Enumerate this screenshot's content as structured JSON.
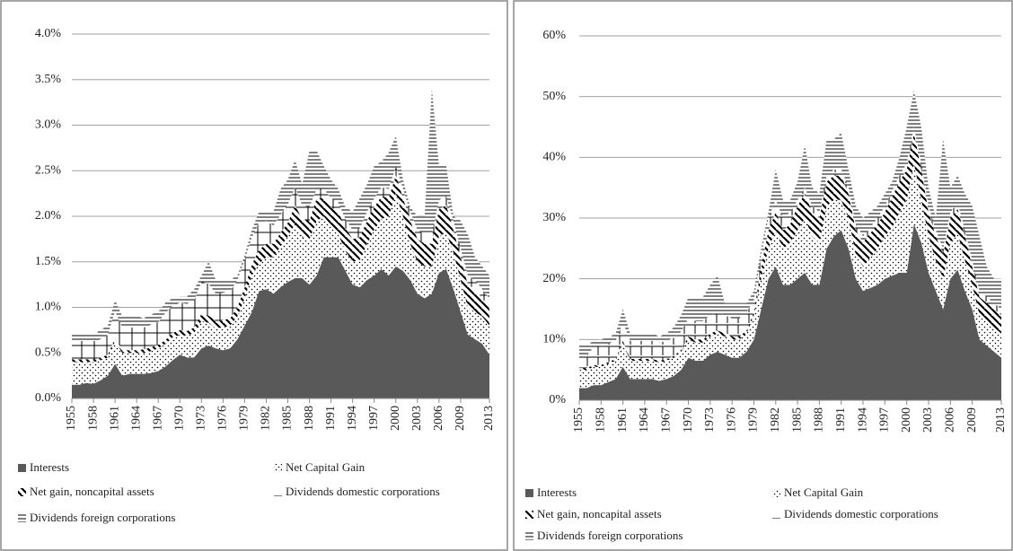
{
  "chart_data": [
    {
      "type": "area",
      "stacked": true,
      "x": [
        1955,
        1956,
        1957,
        1958,
        1959,
        1960,
        1961,
        1962,
        1963,
        1964,
        1965,
        1966,
        1967,
        1968,
        1969,
        1970,
        1971,
        1972,
        1973,
        1974,
        1975,
        1976,
        1977,
        1978,
        1979,
        1980,
        1981,
        1982,
        1983,
        1984,
        1985,
        1986,
        1987,
        1988,
        1989,
        1990,
        1991,
        1992,
        1993,
        1994,
        1995,
        1996,
        1997,
        1998,
        1999,
        2000,
        2001,
        2002,
        2003,
        2004,
        2005,
        2006,
        2007,
        2008,
        2009,
        2010,
        2011,
        2012,
        2013
      ],
      "xlim": [
        1955,
        2013
      ],
      "xticks": [
        1955,
        1958,
        1961,
        1964,
        1967,
        1970,
        1973,
        1976,
        1979,
        1982,
        1985,
        1988,
        1991,
        1994,
        1997,
        2000,
        2003,
        2006,
        2009,
        2013
      ],
      "ylim": [
        0,
        4
      ],
      "yticks": [
        {
          "value": 0,
          "label": "0.0%"
        },
        {
          "value": 0.5,
          "label": "0.5%"
        },
        {
          "value": 1,
          "label": "1.0%"
        },
        {
          "value": 1.5,
          "label": "1.5%"
        },
        {
          "value": 2,
          "label": "2.0%"
        },
        {
          "value": 2.5,
          "label": "2.5%"
        },
        {
          "value": 3,
          "label": "3.0%"
        },
        {
          "value": 3.5,
          "label": "3.5%"
        },
        {
          "value": 4,
          "label": "4.0%"
        }
      ],
      "grid": true,
      "series": [
        {
          "name": "Interests",
          "color": "#595959",
          "pattern": "solid",
          "values": [
            0.15,
            0.15,
            0.17,
            0.16,
            0.2,
            0.25,
            0.38,
            0.25,
            0.27,
            0.27,
            0.27,
            0.28,
            0.3,
            0.35,
            0.42,
            0.48,
            0.45,
            0.45,
            0.55,
            0.58,
            0.55,
            0.53,
            0.55,
            0.65,
            0.8,
            0.95,
            1.18,
            1.2,
            1.15,
            1.22,
            1.28,
            1.32,
            1.32,
            1.25,
            1.35,
            1.55,
            1.55,
            1.55,
            1.4,
            1.25,
            1.22,
            1.3,
            1.35,
            1.42,
            1.35,
            1.45,
            1.4,
            1.3,
            1.15,
            1.1,
            1.15,
            1.38,
            1.42,
            1.2,
            0.95,
            0.7,
            0.65,
            0.6,
            0.48
          ]
        },
        {
          "name": "Net Capital Gain",
          "color": "#000000",
          "pattern": "dots",
          "values": [
            0.25,
            0.25,
            0.23,
            0.24,
            0.22,
            0.2,
            0.25,
            0.25,
            0.23,
            0.23,
            0.23,
            0.24,
            0.25,
            0.25,
            0.25,
            0.22,
            0.24,
            0.27,
            0.3,
            0.25,
            0.22,
            0.25,
            0.25,
            0.25,
            0.3,
            0.4,
            0.3,
            0.35,
            0.4,
            0.45,
            0.5,
            0.6,
            0.45,
            0.5,
            0.6,
            0.45,
            0.35,
            0.25,
            0.22,
            0.25,
            0.3,
            0.4,
            0.5,
            0.55,
            0.65,
            0.8,
            0.6,
            0.4,
            0.35,
            0.35,
            0.3,
            0.4,
            0.4,
            0.4,
            0.35,
            0.3,
            0.3,
            0.3,
            0.32
          ]
        },
        {
          "name": "Net gain, noncapital assets",
          "color": "#000000",
          "pattern": "diagonal",
          "values": [
            0.03,
            0.03,
            0.03,
            0.03,
            0.03,
            0.03,
            0.03,
            0.03,
            0.03,
            0.03,
            0.04,
            0.04,
            0.04,
            0.04,
            0.05,
            0.05,
            0.05,
            0.06,
            0.08,
            0.08,
            0.08,
            0.08,
            0.08,
            0.1,
            0.12,
            0.12,
            0.15,
            0.15,
            0.15,
            0.15,
            0.15,
            0.2,
            0.2,
            0.2,
            0.25,
            0.2,
            0.2,
            0.25,
            0.25,
            0.25,
            0.25,
            0.25,
            0.25,
            0.25,
            0.2,
            0.2,
            0.2,
            0.25,
            0.25,
            0.25,
            0.25,
            0.3,
            0.3,
            0.25,
            0.25,
            0.25,
            0.25,
            0.2,
            0.2
          ]
        },
        {
          "name": "Dividends domestic corporations",
          "color": "#000000",
          "pattern": "cross",
          "values": [
            0.2,
            0.2,
            0.2,
            0.2,
            0.2,
            0.22,
            0.3,
            0.25,
            0.25,
            0.25,
            0.24,
            0.25,
            0.25,
            0.3,
            0.3,
            0.3,
            0.3,
            0.3,
            0.35,
            0.35,
            0.3,
            0.3,
            0.3,
            0.3,
            0.3,
            0.3,
            0.3,
            0.25,
            0.2,
            0.2,
            0.2,
            0.2,
            0.15,
            0.15,
            0.1,
            0.1,
            0.1,
            0.1,
            0.1,
            0.1,
            0.1,
            0.1,
            0.1,
            0.1,
            0.1,
            0.1,
            0.1,
            0.1,
            0.1,
            0.1,
            0.1,
            0.1,
            0.1,
            0.1,
            0.1,
            0.1,
            0.1,
            0.1,
            0.1
          ]
        },
        {
          "name": "Dividends foreign corporations",
          "color": "#000000",
          "pattern": "horizontal",
          "values": [
            0.09,
            0.09,
            0.07,
            0.07,
            0.1,
            0.1,
            0.12,
            0.12,
            0.12,
            0.12,
            0.1,
            0.11,
            0.11,
            0.11,
            0.08,
            0.07,
            0.08,
            0.12,
            0.07,
            0.24,
            0.15,
            0.14,
            0.12,
            0.05,
            0.05,
            0.08,
            0.12,
            0.1,
            0.15,
            0.28,
            0.27,
            0.3,
            0.23,
            0.62,
            0.42,
            0.25,
            0.2,
            0.15,
            0.13,
            0.2,
            0.33,
            0.3,
            0.35,
            0.28,
            0.4,
            0.33,
            0.1,
            0.05,
            0.15,
            0.2,
            1.6,
            0.37,
            0.33,
            0.05,
            0.3,
            0.45,
            0.25,
            0.25,
            0.25
          ]
        }
      ]
    },
    {
      "type": "area",
      "stacked": true,
      "x": [
        1955,
        1956,
        1957,
        1958,
        1959,
        1960,
        1961,
        1962,
        1963,
        1964,
        1965,
        1966,
        1967,
        1968,
        1969,
        1970,
        1971,
        1972,
        1973,
        1974,
        1975,
        1976,
        1977,
        1978,
        1979,
        1980,
        1981,
        1982,
        1983,
        1984,
        1985,
        1986,
        1987,
        1988,
        1989,
        1990,
        1991,
        1992,
        1993,
        1994,
        1995,
        1996,
        1997,
        1998,
        1999,
        2000,
        2001,
        2002,
        2003,
        2004,
        2005,
        2006,
        2007,
        2008,
        2009,
        2010,
        2011,
        2012,
        2013
      ],
      "xlim": [
        1955,
        2013
      ],
      "xticks": [
        1955,
        1958,
        1961,
        1964,
        1967,
        1970,
        1973,
        1976,
        1979,
        1982,
        1985,
        1988,
        1991,
        1994,
        1997,
        2000,
        2003,
        2006,
        2009,
        2013
      ],
      "ylim": [
        0,
        60
      ],
      "yticks": [
        {
          "value": 0,
          "label": "0%"
        },
        {
          "value": 10,
          "label": "10%"
        },
        {
          "value": 20,
          "label": "20%"
        },
        {
          "value": 30,
          "label": "30%"
        },
        {
          "value": 40,
          "label": "40%"
        },
        {
          "value": 50,
          "label": "50%"
        },
        {
          "value": 60,
          "label": "60%"
        }
      ],
      "grid": true,
      "series": [
        {
          "name": "Interests",
          "color": "#595959",
          "pattern": "solid",
          "values": [
            2,
            2,
            2.5,
            2.5,
            3,
            3.5,
            5.5,
            3.5,
            3.5,
            3.5,
            3.5,
            3.2,
            3.5,
            4,
            5,
            7,
            6.5,
            6.5,
            7.5,
            8,
            7.5,
            7,
            7,
            8,
            10,
            15,
            20,
            22,
            19,
            19,
            20,
            21,
            19,
            19,
            25,
            27,
            28,
            25,
            20,
            18,
            18.5,
            19,
            20,
            20.5,
            21,
            21,
            29,
            26,
            21,
            18,
            15,
            20,
            21.5,
            18,
            15,
            10,
            9,
            8,
            7
          ]
        },
        {
          "name": "Net Capital Gain",
          "color": "#000000",
          "pattern": "dots",
          "values": [
            3,
            3,
            3,
            3,
            3,
            3,
            4,
            3,
            3,
            3,
            3,
            3,
            3,
            3,
            3,
            3,
            3,
            3,
            3,
            3,
            3,
            3,
            3,
            3,
            4,
            5,
            5,
            6,
            6,
            7,
            8,
            9,
            8,
            7,
            7,
            6,
            5,
            5,
            4,
            4,
            5,
            6,
            7,
            8,
            10,
            12,
            10,
            7,
            6,
            5,
            5,
            6,
            6,
            5,
            4,
            4,
            4,
            4,
            4
          ]
        },
        {
          "name": "Net gain, noncapital assets",
          "color": "#000000",
          "pattern": "diagonal",
          "values": [
            0.3,
            0.3,
            0.3,
            0.3,
            0.3,
            0.3,
            0.3,
            0.3,
            0.3,
            0.3,
            0.3,
            0.3,
            0.3,
            0.3,
            0.3,
            0.5,
            0.5,
            0.5,
            0.5,
            0.5,
            0.5,
            0.5,
            0.5,
            0.5,
            0.5,
            2,
            3,
            3,
            3,
            3,
            4,
            4,
            4,
            4,
            4,
            4,
            4,
            4,
            4,
            4,
            4,
            4,
            4,
            5,
            5,
            5,
            5,
            5,
            4,
            4,
            4,
            4,
            4,
            4,
            3,
            3,
            3,
            3,
            3
          ]
        },
        {
          "name": "Dividends domestic corporations",
          "color": "#000000",
          "pattern": "tee",
          "values": [
            2,
            2,
            3,
            3,
            3,
            3,
            3,
            3,
            3,
            3,
            3,
            3,
            3,
            3,
            3,
            3,
            3,
            3,
            3,
            3,
            3,
            3,
            3,
            3,
            2,
            2,
            2,
            2,
            2,
            2,
            1,
            1,
            1,
            1,
            1,
            1,
            1,
            1,
            1,
            1,
            1,
            1,
            1,
            1,
            1,
            1,
            1,
            1,
            1,
            1,
            1,
            1,
            1,
            1,
            1,
            1,
            1,
            1,
            1
          ]
        },
        {
          "name": "Dividends foreign corporations",
          "color": "#000000",
          "pattern": "horizontal",
          "values": [
            1.7,
            1.7,
            1,
            1.2,
            1,
            1.2,
            2.2,
            1.2,
            1.2,
            1.2,
            1.2,
            1,
            1.2,
            1.7,
            2.7,
            3.5,
            4,
            4,
            5,
            6,
            2,
            2.5,
            2.5,
            1.5,
            1.5,
            1,
            1,
            5,
            3,
            2,
            3,
            7,
            3,
            3,
            6,
            5,
            6,
            3,
            3,
            3,
            2.5,
            2,
            2,
            1.5,
            3,
            6,
            6,
            6,
            3,
            2,
            18,
            4,
            4.5,
            6,
            9,
            9,
            5,
            4,
            5
          ]
        }
      ]
    }
  ]
}
